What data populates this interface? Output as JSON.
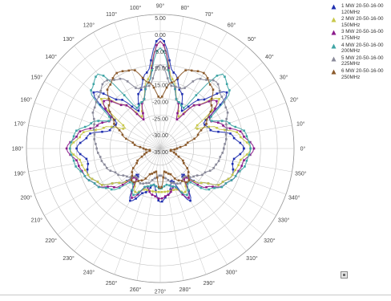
{
  "chart_data": {
    "type": "polar-line",
    "radial_axis": {
      "ticks": [
        "5.00",
        "0.00",
        "-5.00",
        "-10.00",
        "-15.00",
        "-20.00",
        "-25.00",
        "-30.00",
        "-35.00"
      ],
      "min": -35,
      "max": 5
    },
    "angular_axis": {
      "ticks": [
        "0°",
        "10°",
        "20°",
        "30°",
        "40°",
        "50°",
        "60°",
        "70°",
        "80°",
        "90°",
        "100°",
        "110°",
        "120°",
        "130°",
        "140°",
        "150°",
        "160°",
        "170°",
        "180°",
        "190°",
        "200°",
        "210°",
        "220°",
        "230°",
        "240°",
        "250°",
        "260°",
        "270°",
        "280°",
        "290°",
        "300°",
        "310°",
        "320°",
        "330°",
        "340°",
        "350°"
      ],
      "zero_direction": "right",
      "direction": "counterclockwise"
    },
    "series": [
      {
        "name": "1 MW 20-50-16-00\n120MHz",
        "color": "#1f2fb0",
        "marker": "triangle",
        "r": [
          -10,
          -13,
          -19,
          -20,
          -9,
          -16,
          -22,
          -17,
          -12,
          -2,
          -12,
          -17,
          -22,
          -16,
          -9,
          -20,
          -19,
          -13,
          -10,
          -13,
          -12,
          -14,
          -19,
          -25,
          -17,
          -21,
          -24,
          -19,
          -21,
          -25,
          -17,
          -25,
          -19,
          -14,
          -12,
          -13
        ]
      },
      {
        "name": "2 MW 20-50-16-00\n150MHz",
        "color": "#c8c84a",
        "marker": "triangle",
        "r": [
          -8,
          -11,
          -17,
          -23,
          -12,
          -18,
          -24,
          -20,
          -14,
          -3,
          -14,
          -20,
          -24,
          -18,
          -12,
          -23,
          -17,
          -11,
          -8,
          -11,
          -12,
          -14,
          -19,
          -24,
          -20,
          -22,
          -22,
          -22,
          -22,
          -22,
          -20,
          -24,
          -19,
          -14,
          -12,
          -11
        ]
      },
      {
        "name": "3 MW 20-50-16-00\n175MHz",
        "color": "#8b1a8b",
        "marker": "triangle",
        "r": [
          -7,
          -10,
          -15,
          -18,
          -13,
          -18,
          -25,
          -20,
          -15,
          -3,
          -15,
          -20,
          -25,
          -18,
          -13,
          -18,
          -15,
          -10,
          -7,
          -10,
          -11,
          -13,
          -17,
          -24,
          -18,
          -23,
          -21,
          -20,
          -21,
          -23,
          -18,
          -24,
          -17,
          -13,
          -11,
          -10
        ]
      },
      {
        "name": "4 MW 20-50-16-00\n200MHz",
        "color": "#3fa5a5",
        "marker": "triangle",
        "r": [
          -8,
          -9,
          -13,
          -18,
          -8,
          -6,
          -21,
          -20,
          -15,
          -5,
          -15,
          -20,
          -21,
          -6,
          -8,
          -18,
          -13,
          -9,
          -8,
          -9,
          -11,
          -13,
          -16,
          -22,
          -19,
          -23,
          -24,
          -23,
          -24,
          -23,
          -19,
          -22,
          -16,
          -13,
          -11,
          -9
        ]
      },
      {
        "name": "5 MW 20-50-16-00\n225MHz",
        "color": "#8a8a9a",
        "marker": "triangle",
        "r": [
          -16,
          -15,
          -14,
          -12,
          -11,
          -9,
          -11,
          -16,
          -16,
          -10,
          -16,
          -16,
          -11,
          -9,
          -11,
          -12,
          -14,
          -15,
          -16,
          -17,
          -18,
          -20,
          -22,
          -24,
          -23,
          -24,
          -26,
          -27,
          -26,
          -24,
          -23,
          -24,
          -22,
          -20,
          -18,
          -17
        ]
      },
      {
        "name": "6 MW 20-50-16-00\n250MHz",
        "color": "#8b5a2b",
        "marker": "triangle",
        "r": [
          -30,
          -27,
          -23,
          -19,
          -15,
          -11,
          -9,
          -10,
          -15,
          -20,
          -15,
          -10,
          -9,
          -11,
          -15,
          -19,
          -23,
          -27,
          -30,
          -32,
          -30,
          -27,
          -24,
          -22,
          -24,
          -27,
          -28,
          -23,
          -28,
          -27,
          -24,
          -22,
          -24,
          -27,
          -30,
          -32
        ]
      }
    ]
  },
  "corner_button_icon": "stop-square-icon"
}
